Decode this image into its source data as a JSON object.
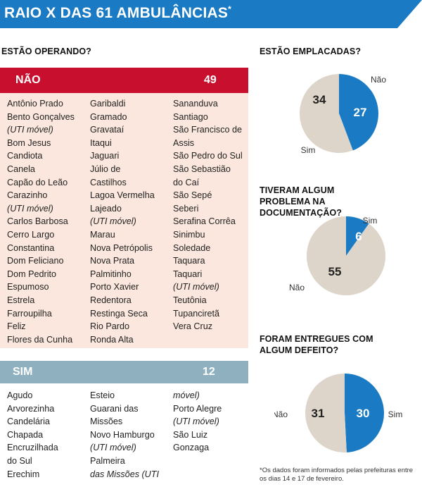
{
  "title": "RAIO X DAS 61 AMBULÂNCIAS",
  "title_mark": "*",
  "colors": {
    "header": "#1a7bc4",
    "nao_bar": "#c8102e",
    "nao_bg": "#fbe7dd",
    "sim_bar": "#8fb1bf",
    "blue": "#1a7bc4",
    "beige": "#ddd5c9"
  },
  "operating": {
    "question": "ESTÃO OPERANDO?",
    "nao": {
      "label": "NÃO",
      "count": "49",
      "columns": [
        [
          "Antônio Prado",
          "Bento Gonçalves",
          "(UTI móvel)",
          "Bom Jesus",
          "Candiota",
          "Canela",
          "Capão do Leão",
          "Carazinho",
          "(UTI móvel)",
          "Carlos Barbosa",
          "Cerro Largo",
          "Constantina",
          "Dom Feliciano",
          "Dom Pedrito",
          "Espumoso",
          "Estrela",
          "Farroupilha",
          "Feliz",
          "Flores da Cunha"
        ],
        [
          "Garibaldi",
          "Gramado",
          "Gravataí",
          "Itaqui",
          "Jaguari",
          "Júlio de",
          "Castilhos",
          "Lagoa Vermelha",
          "Lajeado",
          "(UTI móvel)",
          "Marau",
          "Nova Petrópolis",
          "Nova Prata",
          "Palmitinho",
          "Porto Xavier",
          "Redentora",
          "Restinga Seca",
          "Rio Pardo",
          "Ronda Alta"
        ],
        [
          "Sananduva",
          "Santiago",
          "São Francisco de",
          "Assis",
          "São Pedro do Sul",
          "São Sebastião",
          "do Caí",
          "São Sepé",
          "Seberi",
          "Serafina Corrêa",
          "Sinimbu",
          "Soledade",
          "Taquara",
          "Taquari",
          "(UTI móvel)",
          "Teutônia",
          "Tupanciretã",
          "Vera Cruz"
        ]
      ]
    },
    "sim": {
      "label": "SIM",
      "count": "12",
      "columns": [
        [
          "Agudo",
          "Arvorezinha",
          "Candelária",
          "Chapada",
          "Encruzilhada",
          "do Sul",
          "Erechim"
        ],
        [
          "Esteio",
          "Guarani das",
          "Missões",
          "Novo Hamburgo",
          "(UTI móvel)",
          "Palmeira",
          "das Missões (UTI"
        ],
        [
          "móvel)",
          "Porto Alegre",
          "(UTI móvel)",
          "São Luiz",
          "Gonzaga"
        ]
      ]
    }
  },
  "chart_data": [
    {
      "type": "pie",
      "title": "ESTÃO EMPLACADAS?",
      "slices": [
        {
          "label": "Não",
          "value": 27,
          "color": "#1a7bc4"
        },
        {
          "label": "Sim",
          "value": 34,
          "color": "#ddd5c9"
        }
      ]
    },
    {
      "type": "pie",
      "title": "TIVERAM ALGUM PROBLEMA NA DOCUMENTAÇÃO?",
      "slices": [
        {
          "label": "Sim",
          "value": 6,
          "color": "#1a7bc4"
        },
        {
          "label": "Não",
          "value": 55,
          "color": "#ddd5c9"
        }
      ]
    },
    {
      "type": "pie",
      "title": "FORAM ENTREGUES COM ALGUM DEFEITO?",
      "slices": [
        {
          "label": "Sim",
          "value": 30,
          "color": "#1a7bc4"
        },
        {
          "label": "Não",
          "value": 31,
          "color": "#ddd5c9"
        }
      ]
    }
  ],
  "footnote": "*Os dados foram informados pelas prefeituras entre os dias 14 e 17 de fevereiro."
}
